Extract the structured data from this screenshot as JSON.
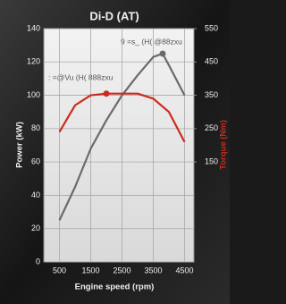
{
  "chart_data": {
    "type": "line",
    "title": "Di-D (AT)",
    "xlabel": "Engine speed (rpm)",
    "ylabel": "Power (kW)",
    "y2label": "Torque (Nm)",
    "xlim": [
      0,
      4800
    ],
    "xticks": [
      500,
      1500,
      2500,
      3500,
      4500
    ],
    "ylim": [
      0,
      140
    ],
    "yticks": [
      0,
      20,
      40,
      60,
      80,
      100,
      120,
      140
    ],
    "y2lim": [
      -150,
      550
    ],
    "y2ticks": [
      150,
      250,
      350,
      450,
      550
    ],
    "grid": true,
    "series": [
      {
        "color": "#6a6a6a",
        "peak_marker": true,
        "x": [
          500,
          1000,
          1500,
          2000,
          2500,
          3000,
          3500,
          3800,
          4000,
          4500
        ],
        "values": [
          25,
          45,
          68,
          85,
          100,
          112,
          123,
          125,
          118,
          100
        ]
      },
      {
        "color": "#cc2a1e",
        "axis": "y2",
        "peak_marker": true,
        "x": [
          500,
          1000,
          1500,
          2000,
          2500,
          3000,
          3500,
          4000,
          4500
        ],
        "values": [
          240,
          320,
          350,
          355,
          355,
          355,
          340,
          300,
          210
        ]
      }
    ],
    "annotations": [
      "9 =s_ (H( @88zxu",
      ": =@Vu (H( 888zxu"
    ]
  }
}
